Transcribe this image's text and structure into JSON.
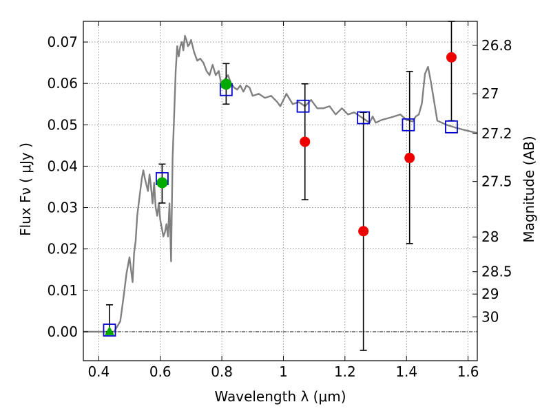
{
  "chart_data": {
    "type": "scatter",
    "title": "",
    "xlabel": "Wavelength  λ (μm)",
    "ylabel": "Flux  Fν  ( μJy )",
    "y2label": "Magnitude (AB)",
    "xlim": [
      0.35,
      1.63
    ],
    "ylim": [
      -0.007,
      0.075
    ],
    "grid": true,
    "x_ticks": [
      0.4,
      0.6,
      0.8,
      1.0,
      1.2,
      1.4,
      1.6
    ],
    "x_tick_labels": [
      "0.4",
      "0.6",
      "0.8",
      "1",
      "1.2",
      "1.4",
      "1.6"
    ],
    "y_ticks": [
      0.0,
      0.01,
      0.02,
      0.03,
      0.04,
      0.05,
      0.06,
      0.07
    ],
    "y_tick_labels": [
      "0.00",
      "0.01",
      "0.02",
      "0.03",
      "0.04",
      "0.05",
      "0.06",
      "0.07"
    ],
    "y2_ticks": [
      {
        "label": "26.8",
        "flux": 0.0692
      },
      {
        "label": "27",
        "flux": 0.0575
      },
      {
        "label": "27.2",
        "flux": 0.0479
      },
      {
        "label": "27.5",
        "flux": 0.0363
      },
      {
        "label": "28",
        "flux": 0.0229
      },
      {
        "label": "28.5",
        "flux": 0.0145
      },
      {
        "label": "29",
        "flux": 0.0091
      },
      {
        "label": "30",
        "flux": 0.0036
      }
    ],
    "colors": {
      "model": "#808080",
      "model_photometry": "#0000cc",
      "observed_detection": "#ee0000",
      "observed_upper": "#00aa00",
      "errorbar": "#000000",
      "zero_line": "#000000"
    },
    "series": [
      {
        "kind": "model_sed",
        "x": [
          0.35,
          0.45,
          0.47,
          0.48,
          0.49,
          0.5,
          0.51,
          0.515,
          0.52,
          0.525,
          0.53,
          0.54,
          0.545,
          0.55,
          0.56,
          0.565,
          0.57,
          0.575,
          0.58,
          0.585,
          0.59,
          0.595,
          0.6,
          0.605,
          0.61,
          0.615,
          0.62,
          0.625,
          0.63,
          0.635,
          0.64,
          0.645,
          0.65,
          0.655,
          0.66,
          0.665,
          0.67,
          0.675,
          0.68,
          0.685,
          0.69,
          0.695,
          0.7,
          0.71,
          0.72,
          0.73,
          0.74,
          0.75,
          0.76,
          0.77,
          0.78,
          0.79,
          0.8,
          0.81,
          0.82,
          0.83,
          0.84,
          0.85,
          0.86,
          0.87,
          0.88,
          0.89,
          0.9,
          0.92,
          0.94,
          0.96,
          0.98,
          0.99,
          1.0,
          1.01,
          1.03,
          1.05,
          1.07,
          1.09,
          1.11,
          1.13,
          1.15,
          1.17,
          1.19,
          1.21,
          1.23,
          1.25,
          1.27,
          1.28,
          1.29,
          1.3,
          1.32,
          1.35,
          1.38,
          1.4,
          1.42,
          1.43,
          1.44,
          1.45,
          1.46,
          1.47,
          1.48,
          1.5,
          1.53,
          1.56,
          1.59,
          1.63
        ],
        "y": [
          0.0,
          0.0,
          0.0025,
          0.008,
          0.014,
          0.018,
          0.012,
          0.019,
          0.022,
          0.028,
          0.031,
          0.037,
          0.039,
          0.037,
          0.034,
          0.038,
          0.035,
          0.031,
          0.036,
          0.03,
          0.028,
          0.031,
          0.027,
          0.025,
          0.023,
          0.024,
          0.026,
          0.023,
          0.031,
          0.017,
          0.042,
          0.052,
          0.063,
          0.069,
          0.0665,
          0.069,
          0.07,
          0.068,
          0.0715,
          0.0705,
          0.069,
          0.0695,
          0.0705,
          0.0675,
          0.0655,
          0.066,
          0.065,
          0.063,
          0.062,
          0.0645,
          0.062,
          0.063,
          0.059,
          0.061,
          0.062,
          0.06,
          0.059,
          0.0585,
          0.0595,
          0.058,
          0.0595,
          0.059,
          0.057,
          0.0575,
          0.0565,
          0.057,
          0.0555,
          0.0545,
          0.056,
          0.0575,
          0.055,
          0.0555,
          0.0545,
          0.056,
          0.054,
          0.054,
          0.0545,
          0.0525,
          0.054,
          0.0525,
          0.053,
          0.052,
          0.051,
          0.0505,
          0.052,
          0.0505,
          0.0512,
          0.0518,
          0.0525,
          0.0512,
          0.0508,
          0.052,
          0.0525,
          0.0552,
          0.0623,
          0.064,
          0.06,
          0.051,
          0.05,
          0.0493,
          0.0487,
          0.048
        ]
      },
      {
        "kind": "model_photometry",
        "marker": "open-square",
        "x": [
          0.435,
          0.606,
          0.814,
          1.064,
          1.26,
          1.406,
          1.546
        ],
        "y": [
          0.0004,
          0.037,
          0.0585,
          0.0545,
          0.0517,
          0.05,
          0.0495
        ]
      },
      {
        "kind": "observed_detection",
        "marker": "filled-circle",
        "x": [
          1.07,
          1.26,
          1.41,
          1.546
        ],
        "y": [
          0.0459,
          0.0243,
          0.042,
          0.0663
        ],
        "yerr_low": [
          0.0319,
          -0.0045,
          0.0213,
          0.051
        ],
        "yerr_high": [
          0.0599,
          0.053,
          0.0629,
          0.075
        ]
      },
      {
        "kind": "observed_green",
        "marker": "filled-circle",
        "x": [
          0.606,
          0.814
        ],
        "y": [
          0.036,
          0.0598
        ],
        "yerr_low": [
          0.0311,
          0.055
        ],
        "yerr_high": [
          0.0405,
          0.0648
        ]
      },
      {
        "kind": "observed_upper_limit",
        "marker": "triangle",
        "x": [
          0.435
        ],
        "y": [
          0.0
        ],
        "yerr_low": [
          0.0
        ],
        "yerr_high": [
          0.0065
        ]
      }
    ]
  }
}
